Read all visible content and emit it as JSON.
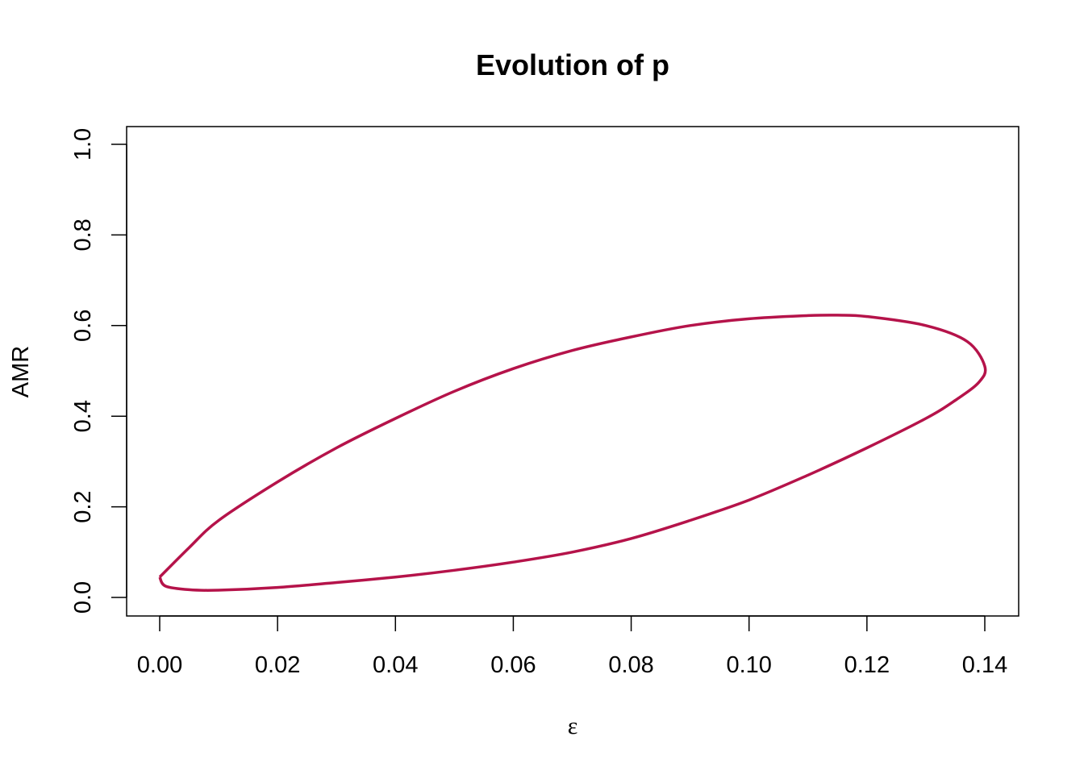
{
  "chart_data": {
    "type": "line",
    "title": "Evolution of p",
    "xlabel": "ε",
    "ylabel": "AMR",
    "xlim": [
      0.0,
      0.14
    ],
    "ylim": [
      0.0,
      1.0
    ],
    "x_ticks": [
      "0.00",
      "0.02",
      "0.04",
      "0.06",
      "0.08",
      "0.10",
      "0.12",
      "0.14"
    ],
    "y_ticks": [
      "0.0",
      "0.2",
      "0.4",
      "0.6",
      "0.8",
      "1.0"
    ],
    "grid": false,
    "legend": "none",
    "line_color": "#B5134A",
    "series": [
      {
        "x": [
          0.0,
          0.005,
          0.01,
          0.02,
          0.03,
          0.04,
          0.05,
          0.06,
          0.07,
          0.08,
          0.09,
          0.1,
          0.11,
          0.115,
          0.12,
          0.13,
          0.137,
          0.14,
          0.139,
          0.135,
          0.13,
          0.12,
          0.11,
          0.1,
          0.09,
          0.08,
          0.07,
          0.06,
          0.05,
          0.04,
          0.03,
          0.02,
          0.01,
          0.005,
          0.001,
          0.0
        ],
        "y": [
          0.045,
          0.11,
          0.17,
          0.255,
          0.33,
          0.395,
          0.455,
          0.505,
          0.545,
          0.575,
          0.6,
          0.615,
          0.622,
          0.623,
          0.62,
          0.6,
          0.565,
          0.51,
          0.475,
          0.435,
          0.395,
          0.33,
          0.27,
          0.215,
          0.17,
          0.13,
          0.1,
          0.078,
          0.06,
          0.045,
          0.033,
          0.022,
          0.016,
          0.017,
          0.025,
          0.045
        ]
      }
    ]
  }
}
